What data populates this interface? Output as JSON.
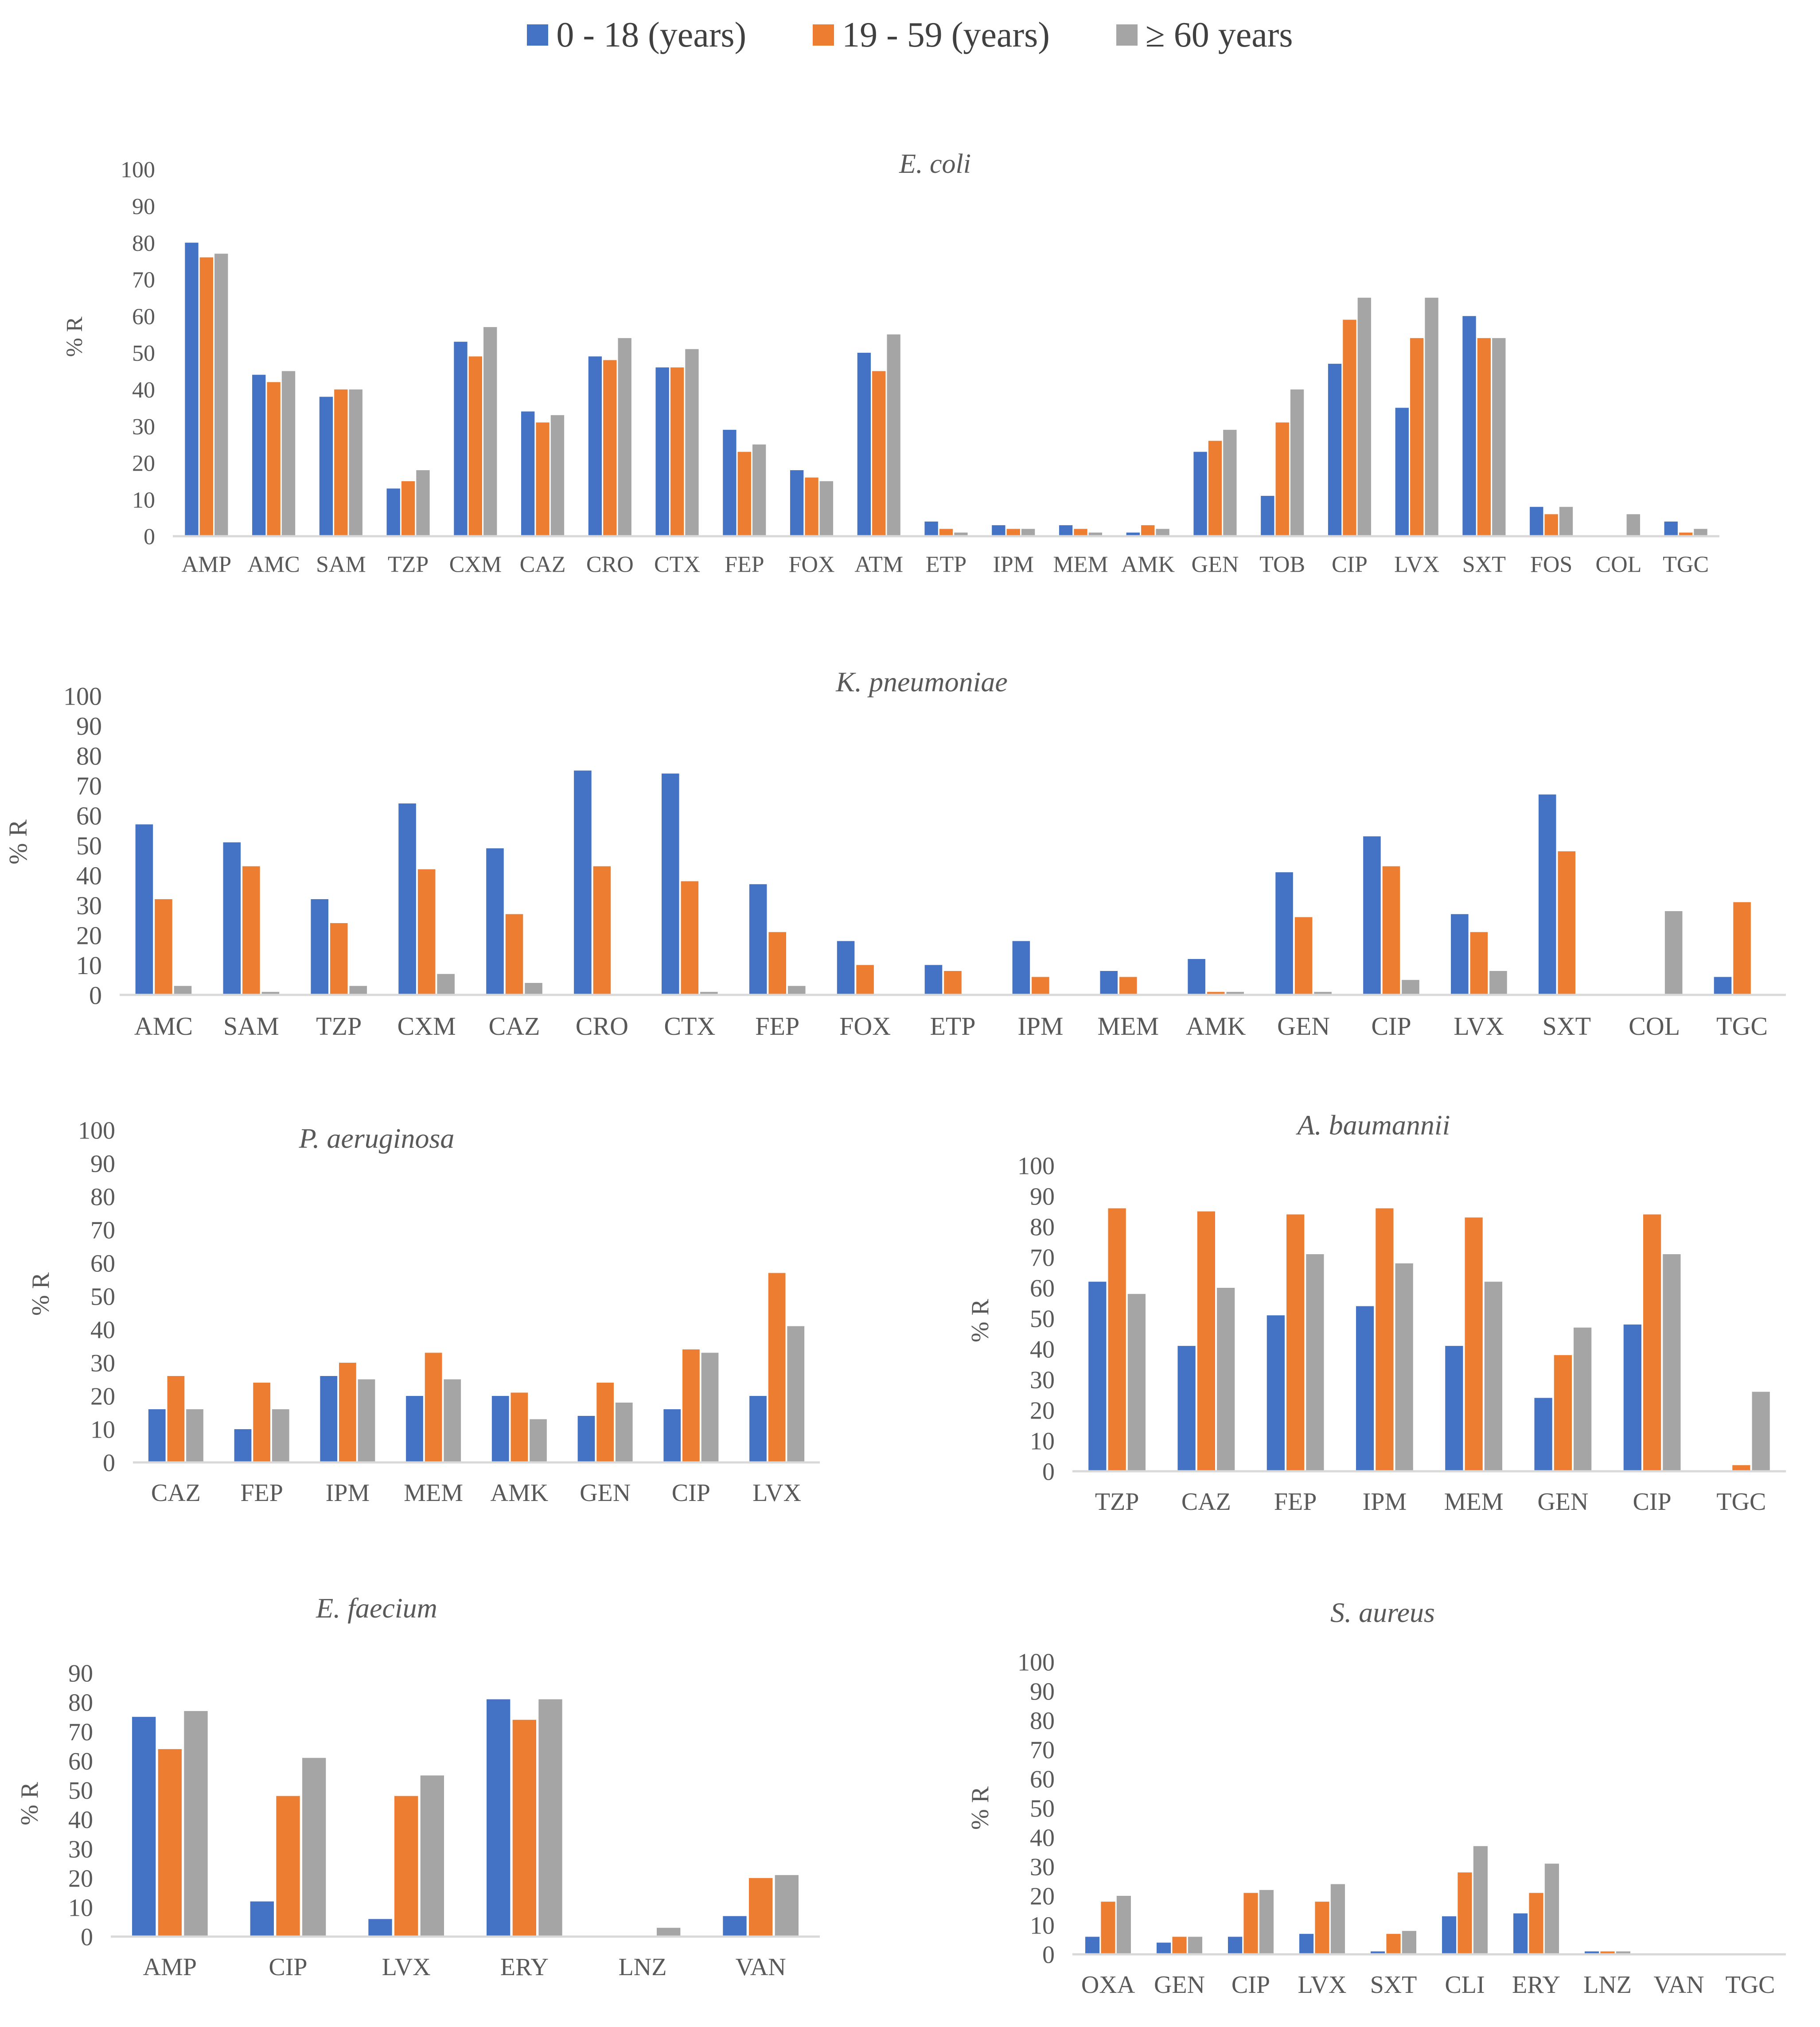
{
  "legend": [
    {
      "label": "0 - 18 (years)",
      "color": "#4472C4"
    },
    {
      "label": "19 - 59 (years)",
      "color": "#ED7D31"
    },
    {
      "label": "≥ 60 years",
      "color": "#A5A5A5"
    }
  ],
  "chart_data": [
    {
      "id": "ecoli",
      "type": "bar",
      "title": "E. coli",
      "ylabel": "% R",
      "xlabel": "",
      "ylim": [
        0,
        100
      ],
      "yticks": [
        0,
        10,
        20,
        30,
        40,
        50,
        60,
        70,
        80,
        90,
        100
      ],
      "categories": [
        "AMP",
        "AMC",
        "SAM",
        "TZP",
        "CXM",
        "CAZ",
        "CRO",
        "CTX",
        "FEP",
        "FOX",
        "ATM",
        "ETP",
        "IPM",
        "MEM",
        "AMK",
        "GEN",
        "TOB",
        "CIP",
        "LVX",
        "SXT",
        "FOS",
        "COL",
        "TGC"
      ],
      "series": [
        {
          "name": "0 - 18 (years)",
          "values": [
            80,
            44,
            38,
            13,
            53,
            34,
            49,
            46,
            29,
            18,
            50,
            4,
            3,
            3,
            1,
            23,
            11,
            47,
            35,
            60,
            8,
            0,
            4
          ]
        },
        {
          "name": "19 - 59 (years)",
          "values": [
            76,
            42,
            40,
            15,
            49,
            31,
            48,
            46,
            23,
            16,
            45,
            2,
            2,
            2,
            3,
            26,
            31,
            59,
            54,
            54,
            6,
            0,
            1
          ]
        },
        {
          "name": "≥ 60 years",
          "values": [
            77,
            45,
            40,
            18,
            57,
            33,
            54,
            51,
            25,
            15,
            55,
            1,
            2,
            1,
            2,
            29,
            40,
            65,
            65,
            54,
            8,
            6,
            2
          ]
        }
      ]
    },
    {
      "id": "kpneumoniae",
      "type": "bar",
      "title": "K. pneumoniae",
      "ylabel": "% R",
      "xlabel": "",
      "ylim": [
        0,
        100
      ],
      "yticks": [
        0,
        10,
        20,
        30,
        40,
        50,
        60,
        70,
        80,
        90,
        100
      ],
      "categories": [
        "AMC",
        "SAM",
        "TZP",
        "CXM",
        "CAZ",
        "CRO",
        "CTX",
        "FEP",
        "FOX",
        "ETP",
        "IPM",
        "MEM",
        "AMK",
        "GEN",
        "CIP",
        "LVX",
        "SXT",
        "COL",
        "TGC"
      ],
      "series": [
        {
          "name": "0 - 18 (years)",
          "values": [
            57,
            51,
            32,
            64,
            49,
            75,
            74,
            37,
            18,
            10,
            18,
            8,
            12,
            41,
            53,
            27,
            67,
            0,
            6
          ]
        },
        {
          "name": "19 - 59 (years)",
          "values": [
            32,
            43,
            24,
            42,
            27,
            43,
            38,
            21,
            10,
            8,
            6,
            6,
            1,
            26,
            43,
            21,
            48,
            0,
            31
          ]
        },
        {
          "name": "≥ 60 years",
          "values": [
            3,
            1,
            3,
            7,
            4,
            0,
            1,
            3,
            0,
            0,
            0,
            0,
            1,
            1,
            5,
            8,
            0,
            28,
            0
          ]
        }
      ]
    },
    {
      "id": "paeruginosa",
      "type": "bar",
      "title": "P. aeruginosa",
      "ylabel": "% R",
      "xlabel": "",
      "ylim": [
        0,
        100
      ],
      "yticks": [
        0,
        10,
        20,
        30,
        40,
        50,
        60,
        70,
        80,
        90,
        100
      ],
      "categories": [
        "CAZ",
        "FEP",
        "IPM",
        "MEM",
        "AMK",
        "GEN",
        "CIP",
        "LVX"
      ],
      "series": [
        {
          "name": "0 - 18 (years)",
          "values": [
            16,
            10,
            26,
            20,
            20,
            14,
            16,
            20
          ]
        },
        {
          "name": "19 - 59 (years)",
          "values": [
            26,
            24,
            30,
            33,
            21,
            24,
            34,
            57
          ]
        },
        {
          "name": "≥ 60 years",
          "values": [
            16,
            16,
            25,
            25,
            13,
            18,
            33,
            41
          ]
        }
      ]
    },
    {
      "id": "abaumannii",
      "type": "bar",
      "title": "A. baumannii",
      "ylabel": "% R",
      "xlabel": "",
      "ylim": [
        0,
        100
      ],
      "yticks": [
        0,
        10,
        20,
        30,
        40,
        50,
        60,
        70,
        80,
        90,
        100
      ],
      "categories": [
        "TZP",
        "CAZ",
        "FEP",
        "IPM",
        "MEM",
        "GEN",
        "CIP",
        "TGC"
      ],
      "series": [
        {
          "name": "0 - 18 (years)",
          "values": [
            62,
            41,
            51,
            54,
            41,
            24,
            48,
            0
          ]
        },
        {
          "name": "19 - 59 (years)",
          "values": [
            86,
            85,
            84,
            86,
            83,
            38,
            84,
            2
          ]
        },
        {
          "name": "≥ 60 years",
          "values": [
            58,
            60,
            71,
            68,
            62,
            47,
            71,
            26
          ]
        }
      ]
    },
    {
      "id": "efaecium",
      "type": "bar",
      "title": "E. faecium",
      "ylabel": "% R",
      "xlabel": "",
      "ylim": [
        0,
        90
      ],
      "yticks": [
        0,
        10,
        20,
        30,
        40,
        50,
        60,
        70,
        80,
        90
      ],
      "categories": [
        "AMP",
        "CIP",
        "LVX",
        "ERY",
        "LNZ",
        "VAN"
      ],
      "series": [
        {
          "name": "0 - 18 (years)",
          "values": [
            75,
            12,
            6,
            81,
            0,
            7
          ]
        },
        {
          "name": "19 - 59 (years)",
          "values": [
            64,
            48,
            48,
            74,
            0,
            20
          ]
        },
        {
          "name": "≥ 60 years",
          "values": [
            77,
            61,
            55,
            81,
            3,
            21
          ]
        }
      ]
    },
    {
      "id": "saureus",
      "type": "bar",
      "title": "S. aureus",
      "ylabel": "% R",
      "xlabel": "",
      "ylim": [
        0,
        100
      ],
      "yticks": [
        0,
        10,
        20,
        30,
        40,
        50,
        60,
        70,
        80,
        90,
        100
      ],
      "categories": [
        "OXA",
        "GEN",
        "CIP",
        "LVX",
        "SXT",
        "CLI",
        "ERY",
        "LNZ",
        "VAN",
        "TGC"
      ],
      "series": [
        {
          "name": "0 - 18 (years)",
          "values": [
            6,
            4,
            6,
            7,
            1,
            13,
            14,
            1,
            0,
            0
          ]
        },
        {
          "name": "19 - 59 (years)",
          "values": [
            18,
            6,
            21,
            18,
            7,
            28,
            21,
            1,
            0,
            0
          ]
        },
        {
          "name": "≥ 60 years",
          "values": [
            20,
            6,
            22,
            24,
            8,
            37,
            31,
            1,
            0,
            0
          ]
        }
      ]
    }
  ]
}
